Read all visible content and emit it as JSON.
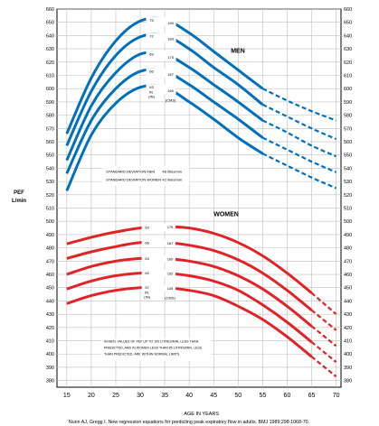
{
  "chart_data": {
    "type": "line",
    "title": "",
    "xlabel": "AGE IN YEARS",
    "ylabel": "PEF L/min",
    "ylabel_lines": [
      "PEF",
      "L/min"
    ],
    "xlim": [
      13,
      71
    ],
    "ylim": [
      375,
      660
    ],
    "x_ticks": [
      15,
      20,
      25,
      30,
      35,
      40,
      45,
      50,
      55,
      60,
      65,
      70
    ],
    "y_ticks": [
      380,
      390,
      400,
      410,
      420,
      430,
      440,
      450,
      460,
      470,
      480,
      490,
      500,
      510,
      520,
      530,
      540,
      550,
      560,
      570,
      580,
      590,
      600,
      610,
      620,
      630,
      640,
      650,
      660
    ],
    "grid": true,
    "height_unit_in": "IN.",
    "height_unit_cm": "(CMS)",
    "men": {
      "label": "MEN",
      "color": "#0070bb",
      "solid_end_age": 55,
      "dashed_end_age": 70,
      "series": [
        {
          "height_in": "75",
          "height_cm": "190",
          "x": [
            15,
            20,
            25,
            30,
            35,
            40,
            45,
            50,
            55,
            60,
            65,
            70
          ],
          "values": [
            566,
            608,
            636,
            651,
            652,
            642,
            628,
            614,
            600,
            591,
            583,
            576
          ]
        },
        {
          "height_in": "72",
          "height_cm": "183",
          "x": [
            15,
            20,
            25,
            30,
            35,
            40,
            45,
            50,
            55,
            60,
            65,
            70
          ],
          "values": [
            557,
            598,
            625,
            639,
            640,
            630,
            616,
            603,
            588,
            579,
            570,
            562
          ]
        },
        {
          "height_in": "69",
          "height_cm": "175",
          "x": [
            15,
            20,
            25,
            30,
            35,
            40,
            45,
            50,
            55,
            60,
            65,
            70
          ],
          "values": [
            546,
            587,
            612,
            626,
            626,
            616,
            603,
            590,
            576,
            567,
            557,
            549
          ]
        },
        {
          "height_in": "66",
          "height_cm": "167",
          "x": [
            15,
            20,
            25,
            30,
            35,
            40,
            45,
            50,
            55,
            60,
            65,
            70
          ],
          "values": [
            536,
            576,
            600,
            613,
            613,
            603,
            590,
            577,
            563,
            554,
            545,
            537
          ]
        },
        {
          "height_in": "63",
          "height_cm": "160",
          "x": [
            15,
            20,
            25,
            30,
            35,
            40,
            45,
            50,
            55,
            60,
            65,
            70
          ],
          "values": [
            523,
            565,
            589,
            601,
            601,
            590,
            577,
            563,
            551,
            542,
            533,
            525
          ]
        }
      ]
    },
    "women": {
      "label": "WOMEN",
      "color": "#e12328",
      "solid_end_age": 65,
      "dashed_end_age": 70,
      "series": [
        {
          "height_in": "69",
          "height_cm": "175",
          "x": [
            15,
            20,
            25,
            30,
            35,
            40,
            45,
            50,
            55,
            60,
            65,
            70
          ],
          "values": [
            483,
            488,
            492,
            495,
            496,
            495,
            491,
            484,
            474,
            461,
            446,
            430
          ]
        },
        {
          "height_in": "66",
          "height_cm": "167",
          "x": [
            15,
            20,
            25,
            30,
            35,
            40,
            45,
            50,
            55,
            60,
            65,
            70
          ],
          "values": [
            472,
            477,
            481,
            484,
            484,
            482,
            478,
            471,
            461,
            448,
            433,
            418
          ]
        },
        {
          "height_in": "63",
          "height_cm": "160",
          "x": [
            15,
            20,
            25,
            30,
            35,
            40,
            45,
            50,
            55,
            60,
            65,
            70
          ],
          "values": [
            460,
            466,
            470,
            472,
            472,
            470,
            466,
            459,
            449,
            436,
            421,
            406
          ]
        },
        {
          "height_in": "60",
          "height_cm": "152",
          "x": [
            15,
            20,
            25,
            30,
            35,
            40,
            45,
            50,
            55,
            60,
            65,
            70
          ],
          "values": [
            449,
            455,
            459,
            461,
            461,
            459,
            455,
            448,
            437,
            424,
            409,
            394
          ]
        },
        {
          "height_in": "57",
          "height_cm": "145",
          "x": [
            15,
            20,
            25,
            30,
            35,
            40,
            45,
            50,
            55,
            60,
            65,
            70
          ],
          "values": [
            438,
            444,
            448,
            450,
            450,
            448,
            444,
            436,
            426,
            413,
            398,
            383
          ]
        }
      ]
    },
    "sd_box": {
      "men_text": "STANDARD DEVIATION MEN",
      "men_value": "48 litres/min",
      "women_text": "STANDARD DEVIATION WOMEN",
      "women_value": "42 litres/min"
    },
    "note_lines": [
      "IN MEN, VALUES OF PEF UP TO 100 LITRES/MIN, LESS THAN",
      "PREDICTED, AND IN WOMEN LESS THAN 85 LITRES/MIN, LESS",
      "THAN PREDICTED, ARE WITHIN NORMAL LIMITS."
    ],
    "citation": "Nunn AJ, Gregg I. New regression equations for predicting peak expiratory flow in adults. BMJ 1989;298:1068-70."
  }
}
